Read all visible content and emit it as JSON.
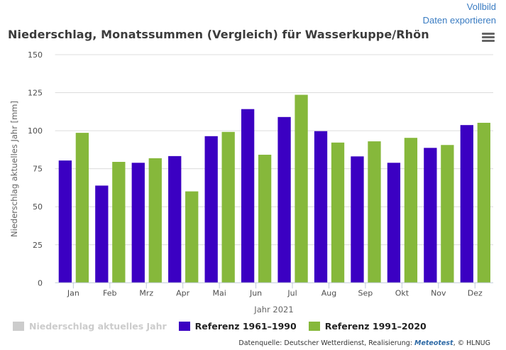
{
  "links": {
    "fullscreen": "Vollbild",
    "export": "Daten exportieren"
  },
  "menu_icon": "hamburger-menu-icon",
  "colors": {
    "ref_1961_1990": "#3b00c2",
    "ref_1991_2020": "#86b83b",
    "current_year_hidden": "#cccccc",
    "grid": "#dcdcdc",
    "link": "#3a7cc2"
  },
  "chart_data": {
    "type": "bar",
    "title": "Niederschlag, Monatssummen (Vergleich) für Wasserkuppe/Rhön",
    "xlabel": "Jahr 2021",
    "ylabel": "Niederschlag aktuelles Jahr [mm]",
    "ylim": [
      0,
      150
    ],
    "yticks": [
      0,
      25,
      50,
      75,
      100,
      125,
      150
    ],
    "grid": true,
    "legend_position": "bottom",
    "categories": [
      "Jan",
      "Feb",
      "Mrz",
      "Apr",
      "Mai",
      "Jun",
      "Jul",
      "Aug",
      "Sep",
      "Okt",
      "Nov",
      "Dez"
    ],
    "series": [
      {
        "name": "Niederschlag aktuelles Jahr",
        "visible": false,
        "values": []
      },
      {
        "name": "Referenz 1961–1990",
        "visible": true,
        "values": [
          80.4,
          63.9,
          78.9,
          83.3,
          96.4,
          114.2,
          109.0,
          99.7,
          83.1,
          78.9,
          88.7,
          103.7
        ]
      },
      {
        "name": "Referenz 1991–2020",
        "visible": true,
        "values": [
          98.6,
          79.5,
          81.9,
          60.1,
          99.2,
          84.2,
          123.6,
          92.2,
          93.0,
          95.3,
          90.6,
          105.2
        ]
      }
    ]
  },
  "footer": {
    "prefix": "Datenquelle: Deutscher Wetterdienst, Realisierung: ",
    "brand": "Meteotest",
    "suffix": ", © HLNUG"
  }
}
